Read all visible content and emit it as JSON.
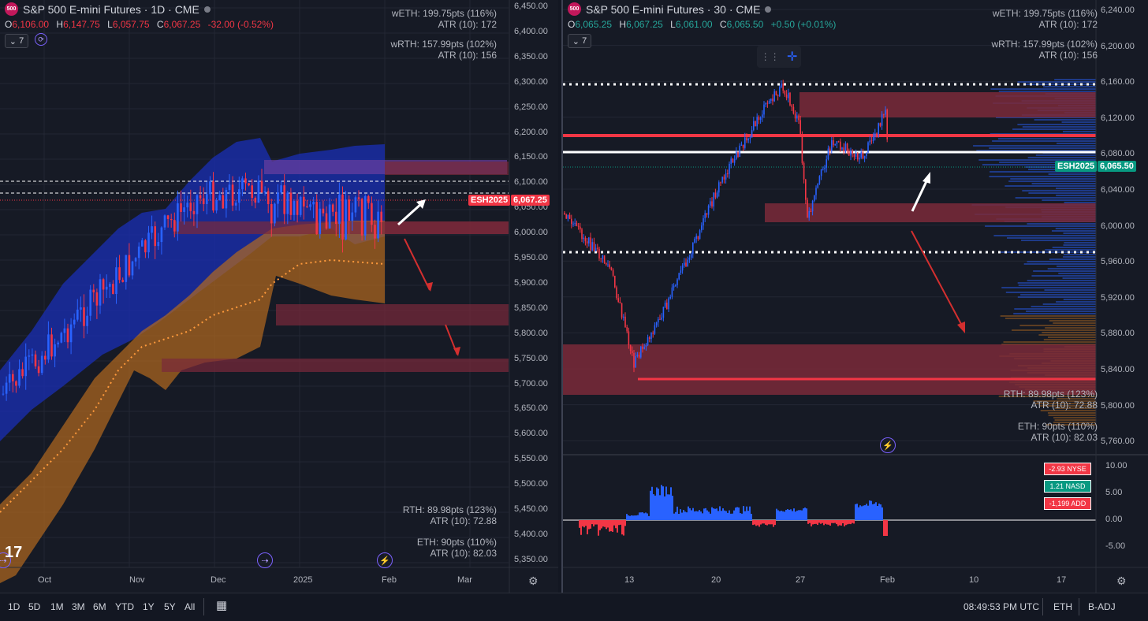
{
  "left": {
    "symbol_badge": "500",
    "title": "S&P 500 E-mini Futures · 1D · CME",
    "ohlc": {
      "o_label": "O",
      "o": "6,106.00",
      "h_label": "H",
      "h": "6,147.75",
      "l_label": "L",
      "l": "6,057.75",
      "c_label": "C",
      "c": "6,067.25",
      "chg": "-32.00 (-0.52%)"
    },
    "indicator_count": "7",
    "stats_top1": [
      "wETH: 199.75pts (116%)",
      "ATR (10): 172"
    ],
    "stats_top2": [
      "wRTH: 157.99pts (102%)",
      "ATR (10): 156"
    ],
    "stats_bot1": [
      "RTH: 89.98pts (123%)",
      "ATR (10): 72.88"
    ],
    "stats_bot2": [
      "ETH: 90pts (110%)",
      "ATR (10): 82.03"
    ],
    "price_ticks": [
      "6,450.00",
      "6,400.00",
      "6,350.00",
      "6,300.00",
      "6,250.00",
      "6,200.00",
      "6,150.00",
      "6,100.00",
      "6,050.00",
      "6,000.00",
      "5,950.00",
      "5,900.00",
      "5,850.00",
      "5,800.00",
      "5,750.00",
      "5,700.00",
      "5,650.00",
      "5,600.00",
      "5,550.00",
      "5,500.00",
      "5,450.00",
      "5,400.00",
      "5,350.00"
    ],
    "time_ticks": [
      "Oct",
      "Nov",
      "Dec",
      "2025",
      "Feb",
      "Mar"
    ],
    "sym_tag": "ESH2025",
    "last_price": "6,067.25",
    "colors": {
      "up": "#2962ff",
      "down": "#f23645",
      "band_blue": "#1a2fb5",
      "band_orange": "#b36a1e",
      "zone": "#7a2a3a"
    }
  },
  "right": {
    "symbol_badge": "500",
    "title": "S&P 500 E-mini Futures · 30 · CME",
    "ohlc": {
      "o_label": "O",
      "o": "6,065.25",
      "h_label": "H",
      "h": "6,067.25",
      "l_label": "L",
      "l": "6,061.00",
      "c_label": "C",
      "c": "6,065.50",
      "chg": "+0.50 (+0.01%)"
    },
    "indicator_count": "7",
    "stats_top1": [
      "wETH: 199.75pts (116%)",
      "ATR (10): 172"
    ],
    "stats_top2": [
      "wRTH: 157.99pts (102%)",
      "ATR (10): 156"
    ],
    "stats_bot1": [
      "RTH: 89.98pts (123%)",
      "ATR (10): 72.88"
    ],
    "stats_bot2": [
      "ETH: 90pts (110%)",
      "ATR (10): 82.03"
    ],
    "price_ticks": [
      "6,240.00",
      "6,200.00",
      "6,160.00",
      "6,120.00",
      "6,080.00",
      "6,040.00",
      "6,000.00",
      "5,960.00",
      "5,920.00",
      "5,880.00",
      "5,840.00",
      "5,800.00",
      "5,760.00"
    ],
    "sub_ticks": [
      "10.00",
      "5.00",
      "0.00",
      "-5.00"
    ],
    "time_ticks": [
      "13",
      "20",
      "27",
      "Feb",
      "10",
      "17"
    ],
    "sym_tag": "ESH2025",
    "last_price": "6,065.50",
    "breadth": [
      {
        "text": "-2.93 NYSE",
        "color": "#f23645"
      },
      {
        "text": "1.21 NASD",
        "color": "#089981"
      },
      {
        "text": "-1,199 ADD",
        "color": "#f23645"
      }
    ]
  },
  "bottom": {
    "timeframes": [
      "1D",
      "5D",
      "1M",
      "3M",
      "6M",
      "YTD",
      "1Y",
      "5Y",
      "All"
    ],
    "clock": "08:49:53 PM UTC",
    "session": "ETH",
    "adj": "B-ADJ"
  }
}
